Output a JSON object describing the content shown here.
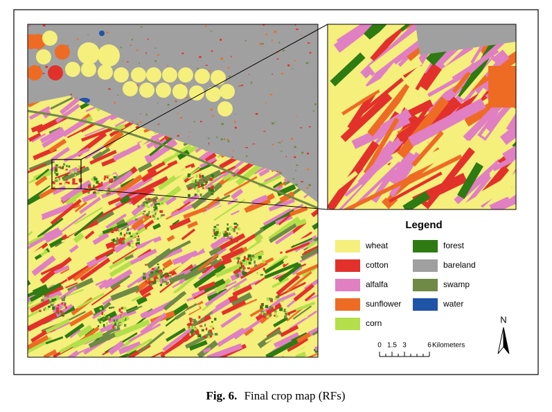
{
  "figure": {
    "legend": {
      "title": "Legend",
      "items": [
        {
          "label": "wheat",
          "color": "#f5ef7c"
        },
        {
          "label": "cotton",
          "color": "#e2312b"
        },
        {
          "label": "alfalfa",
          "color": "#e07fc2"
        },
        {
          "label": "sunflower",
          "color": "#ee6b24"
        },
        {
          "label": "corn",
          "color": "#b3df4a"
        },
        {
          "label": "forest",
          "color": "#2d7b12"
        },
        {
          "label": "bareland",
          "color": "#a0a0a0"
        },
        {
          "label": "swamp",
          "color": "#6e8a45"
        },
        {
          "label": "water",
          "color": "#1f54a7"
        }
      ]
    },
    "scale_bar": {
      "ticks": [
        0,
        1.5,
        3,
        6
      ],
      "unit": "Kilometers"
    },
    "north_label": "N",
    "caption": {
      "label": "Fig. 6.",
      "text": "Final crop map (RFs)"
    }
  }
}
